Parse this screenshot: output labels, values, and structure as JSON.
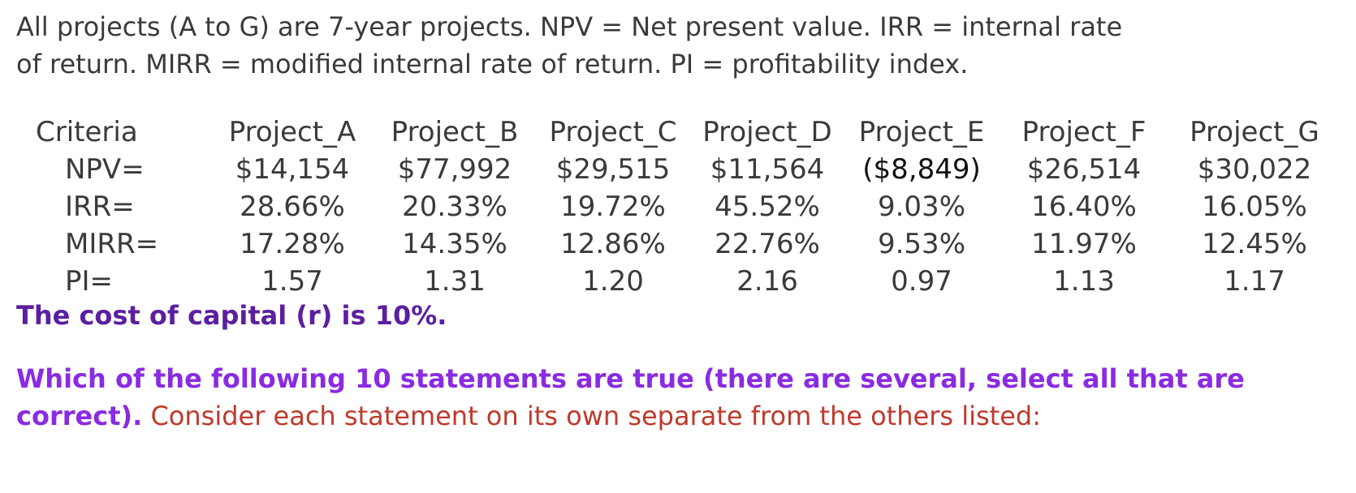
{
  "intro": {
    "line1": "All projects (A to G) are 7-year projects. NPV = Net present value. IRR = internal rate",
    "line2": "of return. MIRR = modified internal rate of return. PI = profitability index."
  },
  "table": {
    "header_label": "Criteria",
    "projects": [
      "Project_A",
      "Project_B",
      "Project_C",
      "Project_D",
      "Project_E",
      "Project_F",
      "Project_G"
    ],
    "rows": [
      {
        "label": "NPV=",
        "values": [
          "$14,154",
          "$77,992",
          "$29,515",
          "$11,564",
          "($8,849)",
          "$26,514",
          "$30,022"
        ]
      },
      {
        "label": "IRR=",
        "values": [
          "28.66%",
          "20.33%",
          "19.72%",
          "45.52%",
          "9.03%",
          "16.40%",
          "16.05%"
        ]
      },
      {
        "label": "MIRR=",
        "values": [
          "17.28%",
          "14.35%",
          "12.86%",
          "22.76%",
          "9.53%",
          "11.97%",
          "12.45%"
        ]
      },
      {
        "label": "PI=",
        "values": [
          "1.57",
          "1.31",
          "1.20",
          "2.16",
          "0.97",
          "1.13",
          "1.17"
        ]
      }
    ]
  },
  "cost_of_capital": "The cost of capital (r) is 10%.",
  "question": {
    "purple_line1": "Which of the following 10 statements are true (there are several, select all that are",
    "purple_line2": "correct).",
    "red_text": " Consider each statement on its own separate from the others listed:"
  },
  "colors": {
    "body_text": "#3a3a3a",
    "cost_purple": "#5b1fa0",
    "question_purple": "#8a2be2",
    "instruction_red": "#c0392b"
  }
}
